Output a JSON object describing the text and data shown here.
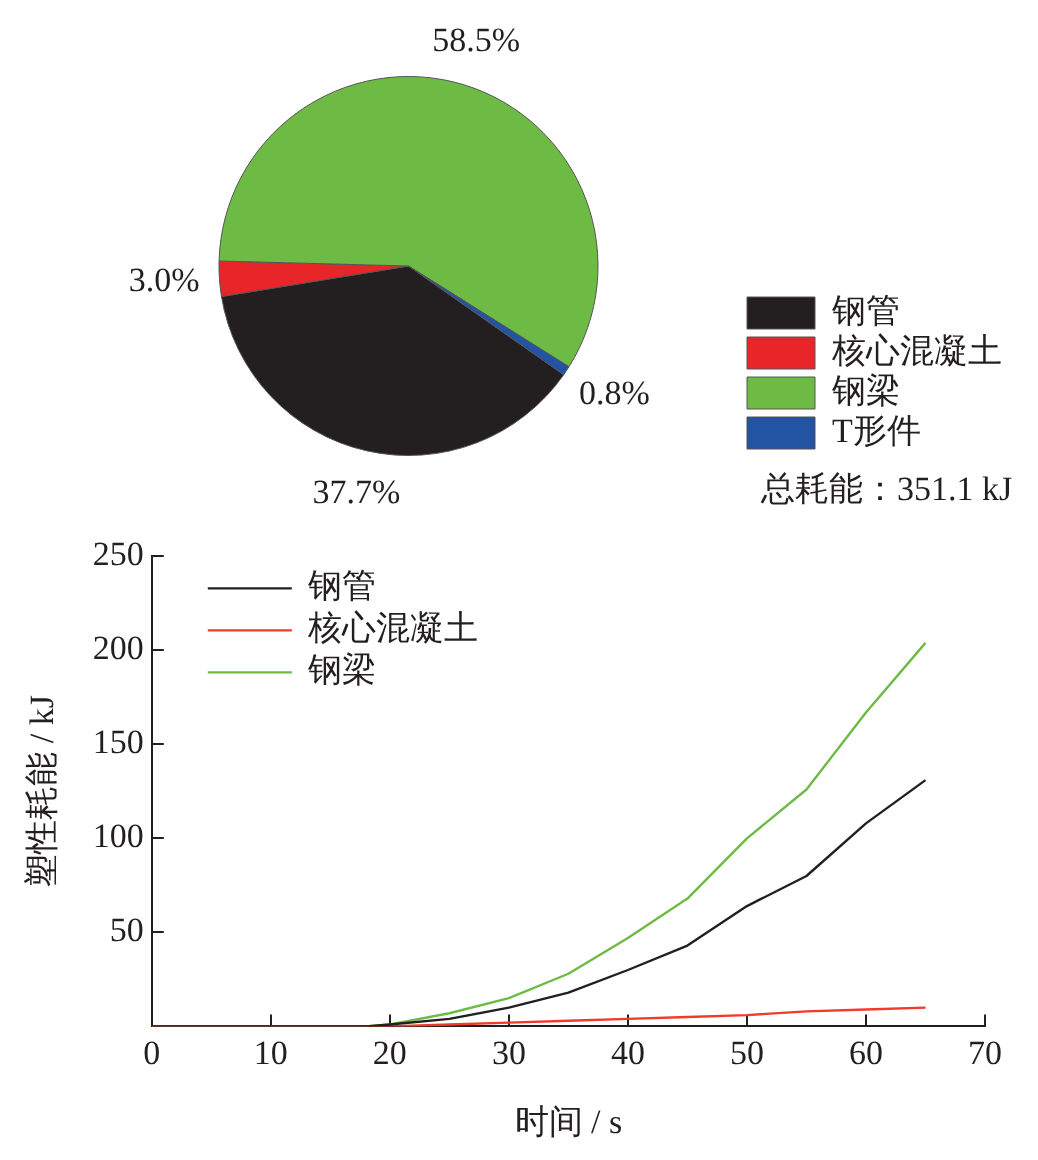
{
  "chart_data": [
    {
      "type": "pie",
      "categories": [
        "钢管",
        "核心混凝土",
        "钢梁",
        "T形件"
      ],
      "values": [
        37.7,
        3.0,
        58.5,
        0.8
      ],
      "colors": [
        "#231f20",
        "#e8262a",
        "#6dbb45",
        "#2353a3"
      ],
      "value_labels": [
        "37.7%",
        "3.0%",
        "58.5%",
        "0.8%"
      ],
      "legend": "bottom right",
      "annotations": [
        "总耗能：351.1 kJ"
      ]
    },
    {
      "type": "line",
      "xlabel": "时间 / s",
      "ylabel": "塑性耗能 / kJ",
      "x": [
        0,
        18,
        20,
        25,
        30,
        35,
        40,
        45,
        50,
        55,
        60,
        65
      ],
      "xlim": [
        0,
        70
      ],
      "ylim": [
        0,
        250
      ],
      "xticks": [
        0,
        10,
        20,
        30,
        40,
        50,
        60,
        70
      ],
      "yticks": [
        {
          "value": 0,
          "label": null
        },
        50,
        100,
        150,
        200,
        250
      ],
      "grid": false,
      "legend": "top left",
      "series": [
        {
          "name": "钢管",
          "color": "#231f20",
          "values": [
            0,
            0,
            1,
            4,
            10,
            18,
            30,
            43,
            64,
            80,
            108,
            131
          ]
        },
        {
          "name": "核心混凝土",
          "color": "#f03a2a",
          "values": [
            0,
            0,
            0,
            1,
            2,
            3,
            4,
            5,
            6,
            8,
            9,
            10
          ]
        },
        {
          "name": "钢梁",
          "color": "#6dbb45",
          "values": [
            0,
            0,
            1,
            7,
            15,
            28,
            47,
            68,
            100,
            126,
            167,
            204
          ]
        }
      ]
    }
  ]
}
